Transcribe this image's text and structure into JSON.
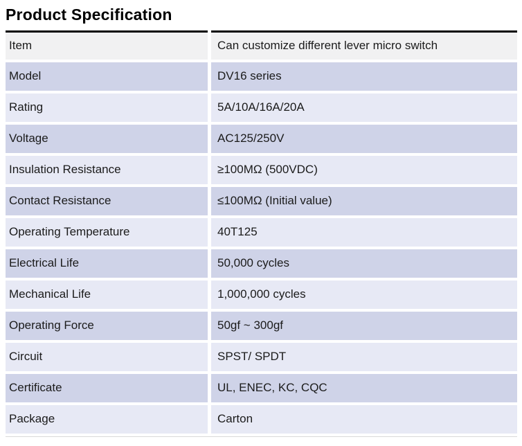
{
  "page": {
    "title": "Product Specification"
  },
  "table": {
    "rows": [
      {
        "label": "Item",
        "value": "Can customize different lever micro switch"
      },
      {
        "label": "Model",
        "value": "DV16 series"
      },
      {
        "label": "Rating",
        "value": "5A/10A/16A/20A"
      },
      {
        "label": "Voltage",
        "value": "AC125/250V"
      },
      {
        "label": "Insulation Resistance",
        "value": "≥100MΩ (500VDC)"
      },
      {
        "label": "Contact Resistance",
        "value": "≤100MΩ (Initial value)"
      },
      {
        "label": "Operating Temperature",
        "value": "40T125"
      },
      {
        "label": "Electrical Life",
        "value": "50,000 cycles"
      },
      {
        "label": "Mechanical Life",
        "value": "1,000,000 cycles"
      },
      {
        "label": "Operating Force",
        "value": "50gf ~ 300gf"
      },
      {
        "label": "Circuit",
        "value": "SPST/ SPDT"
      },
      {
        "label": "Certificate",
        "value": "UL, ENEC, KC, CQC"
      },
      {
        "label": "Package",
        "value": "Carton"
      }
    ],
    "colors": {
      "header_row_bg": "#f1f1f2",
      "row_alt_dark": "#cfd3e8",
      "row_alt_light": "#e7e9f5",
      "top_border": "#000000",
      "text": "#1b1b1b"
    }
  }
}
